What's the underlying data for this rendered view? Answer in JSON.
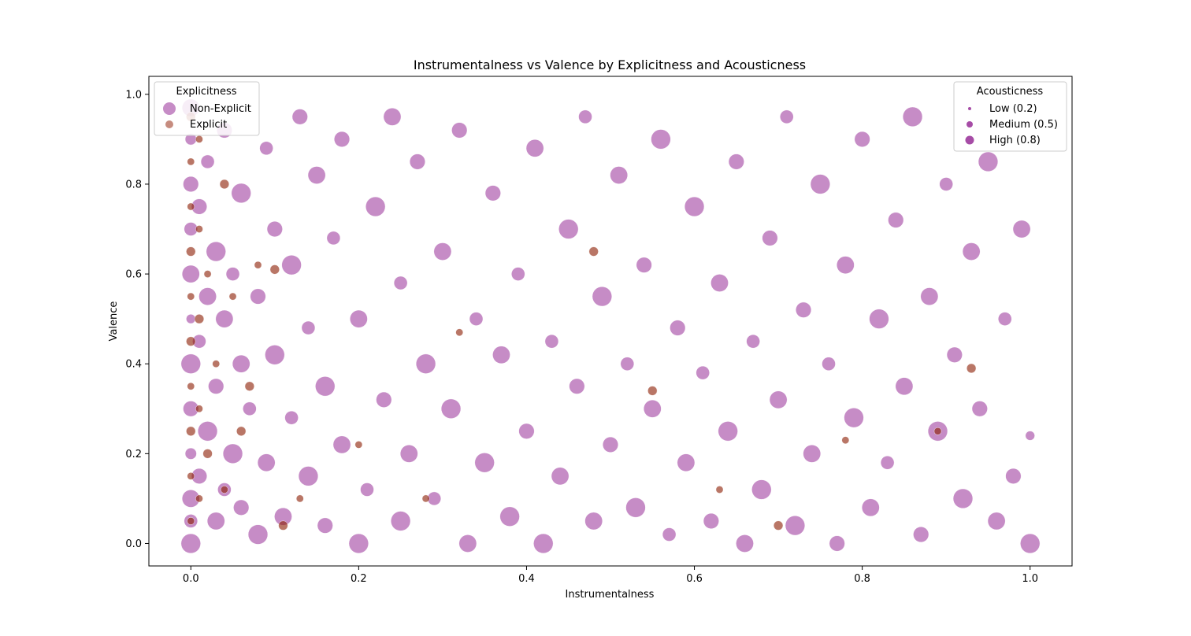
{
  "chart_data": {
    "type": "scatter",
    "title": "Instrumentalness vs Valence by Explicitness and Acousticness",
    "xlabel": "Instrumentalness",
    "ylabel": "Valence",
    "xlim": [
      -0.05,
      1.05
    ],
    "ylim": [
      -0.05,
      1.04
    ],
    "xticks": [
      "0.0",
      "0.2",
      "0.4",
      "0.6",
      "0.8",
      "1.0"
    ],
    "yticks": [
      "0.0",
      "0.2",
      "0.4",
      "0.6",
      "0.8",
      "1.0"
    ],
    "grid": false,
    "colors": {
      "non_explicit": "#800080",
      "explicit": "#8b1a00"
    },
    "series": [
      {
        "name": "Non-Explicit",
        "points": [
          [
            0.0,
            0.0,
            0.8
          ],
          [
            0.0,
            0.05,
            0.5
          ],
          [
            0.0,
            0.1,
            0.7
          ],
          [
            0.0,
            0.2,
            0.4
          ],
          [
            0.0,
            0.3,
            0.6
          ],
          [
            0.0,
            0.4,
            0.8
          ],
          [
            0.0,
            0.5,
            0.3
          ],
          [
            0.0,
            0.6,
            0.7
          ],
          [
            0.0,
            0.7,
            0.5
          ],
          [
            0.0,
            0.8,
            0.6
          ],
          [
            0.0,
            0.9,
            0.4
          ],
          [
            0.0,
            0.97,
            0.7
          ],
          [
            0.01,
            0.15,
            0.6
          ],
          [
            0.01,
            0.45,
            0.5
          ],
          [
            0.01,
            0.75,
            0.6
          ],
          [
            0.02,
            0.25,
            0.8
          ],
          [
            0.02,
            0.55,
            0.7
          ],
          [
            0.02,
            0.85,
            0.5
          ],
          [
            0.03,
            0.05,
            0.7
          ],
          [
            0.03,
            0.35,
            0.6
          ],
          [
            0.03,
            0.65,
            0.8
          ],
          [
            0.04,
            0.12,
            0.5
          ],
          [
            0.04,
            0.5,
            0.7
          ],
          [
            0.04,
            0.92,
            0.6
          ],
          [
            0.05,
            0.2,
            0.8
          ],
          [
            0.05,
            0.6,
            0.5
          ],
          [
            0.06,
            0.08,
            0.6
          ],
          [
            0.06,
            0.4,
            0.7
          ],
          [
            0.06,
            0.78,
            0.8
          ],
          [
            0.07,
            0.3,
            0.5
          ],
          [
            0.08,
            0.02,
            0.8
          ],
          [
            0.08,
            0.55,
            0.6
          ],
          [
            0.09,
            0.18,
            0.7
          ],
          [
            0.09,
            0.88,
            0.5
          ],
          [
            0.1,
            0.42,
            0.8
          ],
          [
            0.1,
            0.7,
            0.6
          ],
          [
            0.11,
            0.06,
            0.7
          ],
          [
            0.12,
            0.28,
            0.5
          ],
          [
            0.12,
            0.62,
            0.8
          ],
          [
            0.13,
            0.95,
            0.6
          ],
          [
            0.14,
            0.15,
            0.8
          ],
          [
            0.14,
            0.48,
            0.5
          ],
          [
            0.15,
            0.82,
            0.7
          ],
          [
            0.16,
            0.04,
            0.6
          ],
          [
            0.16,
            0.35,
            0.8
          ],
          [
            0.17,
            0.68,
            0.5
          ],
          [
            0.18,
            0.22,
            0.7
          ],
          [
            0.18,
            0.9,
            0.6
          ],
          [
            0.2,
            0.0,
            0.8
          ],
          [
            0.2,
            0.5,
            0.7
          ],
          [
            0.21,
            0.12,
            0.5
          ],
          [
            0.22,
            0.75,
            0.8
          ],
          [
            0.23,
            0.32,
            0.6
          ],
          [
            0.24,
            0.95,
            0.7
          ],
          [
            0.25,
            0.05,
            0.8
          ],
          [
            0.25,
            0.58,
            0.5
          ],
          [
            0.26,
            0.2,
            0.7
          ],
          [
            0.27,
            0.85,
            0.6
          ],
          [
            0.28,
            0.4,
            0.8
          ],
          [
            0.29,
            0.1,
            0.5
          ],
          [
            0.3,
            0.65,
            0.7
          ],
          [
            0.31,
            0.3,
            0.8
          ],
          [
            0.32,
            0.92,
            0.6
          ],
          [
            0.33,
            0.0,
            0.7
          ],
          [
            0.34,
            0.5,
            0.5
          ],
          [
            0.35,
            0.18,
            0.8
          ],
          [
            0.36,
            0.78,
            0.6
          ],
          [
            0.37,
            0.42,
            0.7
          ],
          [
            0.38,
            0.06,
            0.8
          ],
          [
            0.39,
            0.6,
            0.5
          ],
          [
            0.4,
            0.25,
            0.6
          ],
          [
            0.41,
            0.88,
            0.7
          ],
          [
            0.42,
            0.0,
            0.8
          ],
          [
            0.43,
            0.45,
            0.5
          ],
          [
            0.44,
            0.15,
            0.7
          ],
          [
            0.45,
            0.7,
            0.8
          ],
          [
            0.46,
            0.35,
            0.6
          ],
          [
            0.47,
            0.95,
            0.5
          ],
          [
            0.48,
            0.05,
            0.7
          ],
          [
            0.49,
            0.55,
            0.8
          ],
          [
            0.5,
            0.22,
            0.6
          ],
          [
            0.51,
            0.82,
            0.7
          ],
          [
            0.52,
            0.4,
            0.5
          ],
          [
            0.53,
            0.08,
            0.8
          ],
          [
            0.54,
            0.62,
            0.6
          ],
          [
            0.55,
            0.3,
            0.7
          ],
          [
            0.56,
            0.9,
            0.8
          ],
          [
            0.57,
            0.02,
            0.5
          ],
          [
            0.58,
            0.48,
            0.6
          ],
          [
            0.59,
            0.18,
            0.7
          ],
          [
            0.6,
            0.75,
            0.8
          ],
          [
            0.61,
            0.38,
            0.5
          ],
          [
            0.62,
            0.05,
            0.6
          ],
          [
            0.63,
            0.58,
            0.7
          ],
          [
            0.64,
            0.25,
            0.8
          ],
          [
            0.65,
            0.85,
            0.6
          ],
          [
            0.66,
            0.0,
            0.7
          ],
          [
            0.67,
            0.45,
            0.5
          ],
          [
            0.68,
            0.12,
            0.8
          ],
          [
            0.69,
            0.68,
            0.6
          ],
          [
            0.7,
            0.32,
            0.7
          ],
          [
            0.71,
            0.95,
            0.5
          ],
          [
            0.72,
            0.04,
            0.8
          ],
          [
            0.73,
            0.52,
            0.6
          ],
          [
            0.74,
            0.2,
            0.7
          ],
          [
            0.75,
            0.8,
            0.8
          ],
          [
            0.76,
            0.4,
            0.5
          ],
          [
            0.77,
            0.0,
            0.6
          ],
          [
            0.78,
            0.62,
            0.7
          ],
          [
            0.79,
            0.28,
            0.8
          ],
          [
            0.8,
            0.9,
            0.6
          ],
          [
            0.81,
            0.08,
            0.7
          ],
          [
            0.82,
            0.5,
            0.8
          ],
          [
            0.83,
            0.18,
            0.5
          ],
          [
            0.84,
            0.72,
            0.6
          ],
          [
            0.85,
            0.35,
            0.7
          ],
          [
            0.86,
            0.95,
            0.8
          ],
          [
            0.87,
            0.02,
            0.6
          ],
          [
            0.88,
            0.55,
            0.7
          ],
          [
            0.89,
            0.25,
            0.8
          ],
          [
            0.9,
            0.8,
            0.5
          ],
          [
            0.91,
            0.42,
            0.6
          ],
          [
            0.92,
            0.1,
            0.8
          ],
          [
            0.93,
            0.65,
            0.7
          ],
          [
            0.94,
            0.3,
            0.6
          ],
          [
            0.95,
            0.85,
            0.8
          ],
          [
            0.96,
            0.05,
            0.7
          ],
          [
            0.97,
            0.5,
            0.5
          ],
          [
            0.98,
            0.15,
            0.6
          ],
          [
            0.99,
            0.7,
            0.7
          ],
          [
            1.0,
            0.0,
            0.8
          ],
          [
            1.0,
            0.24,
            0.3
          ]
        ]
      },
      {
        "name": "Explicit",
        "points": [
          [
            0.0,
            0.05,
            0.2
          ],
          [
            0.0,
            0.15,
            0.2
          ],
          [
            0.0,
            0.25,
            0.3
          ],
          [
            0.0,
            0.35,
            0.2
          ],
          [
            0.0,
            0.45,
            0.3
          ],
          [
            0.0,
            0.55,
            0.2
          ],
          [
            0.0,
            0.65,
            0.3
          ],
          [
            0.0,
            0.75,
            0.2
          ],
          [
            0.0,
            0.85,
            0.2
          ],
          [
            0.0,
            0.95,
            0.3
          ],
          [
            0.01,
            0.1,
            0.2
          ],
          [
            0.01,
            0.3,
            0.2
          ],
          [
            0.01,
            0.5,
            0.3
          ],
          [
            0.01,
            0.7,
            0.2
          ],
          [
            0.01,
            0.9,
            0.2
          ],
          [
            0.02,
            0.2,
            0.3
          ],
          [
            0.02,
            0.6,
            0.2
          ],
          [
            0.03,
            0.4,
            0.2
          ],
          [
            0.04,
            0.12,
            0.2
          ],
          [
            0.04,
            0.8,
            0.3
          ],
          [
            0.05,
            0.55,
            0.2
          ],
          [
            0.06,
            0.25,
            0.3
          ],
          [
            0.07,
            0.35,
            0.3
          ],
          [
            0.08,
            0.62,
            0.2
          ],
          [
            0.1,
            0.61,
            0.3
          ],
          [
            0.11,
            0.04,
            0.3
          ],
          [
            0.13,
            0.1,
            0.2
          ],
          [
            0.2,
            0.22,
            0.2
          ],
          [
            0.28,
            0.1,
            0.2
          ],
          [
            0.32,
            0.47,
            0.2
          ],
          [
            0.48,
            0.65,
            0.3
          ],
          [
            0.55,
            0.34,
            0.3
          ],
          [
            0.63,
            0.12,
            0.2
          ],
          [
            0.7,
            0.04,
            0.3
          ],
          [
            0.78,
            0.23,
            0.2
          ],
          [
            0.89,
            0.25,
            0.2
          ],
          [
            0.93,
            0.39,
            0.3
          ]
        ]
      }
    ],
    "legends": [
      {
        "title": "Explicitness",
        "position": "top-left",
        "entries": [
          "Non-Explicit",
          "Explicit"
        ]
      },
      {
        "title": "Acousticness",
        "position": "top-right",
        "entries": [
          "Low (0.2)",
          "Medium (0.5)",
          "High (0.8)"
        ]
      }
    ]
  }
}
